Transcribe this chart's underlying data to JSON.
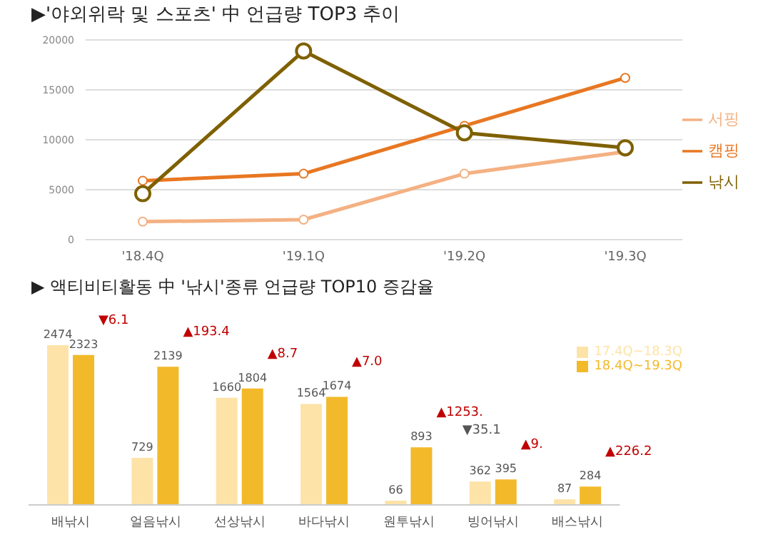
{
  "chart_data": [
    {
      "type": "line",
      "title": "▶'야외위락 및 스포츠' 中 언급량 TOP3 추이",
      "categories": [
        "'18.4Q",
        "'19.1Q",
        "'19.2Q",
        "'19.3Q"
      ],
      "series": [
        {
          "name": "낚시",
          "color": "#7f6000",
          "values": [
            4600,
            18900,
            10700,
            9200
          ]
        },
        {
          "name": "캠핑",
          "color": "#e87722",
          "values": [
            5900,
            6600,
            11400,
            16200
          ]
        },
        {
          "name": "서핑",
          "color": "#f4b183",
          "values": [
            1800,
            2000,
            6600,
            8800
          ]
        }
      ],
      "ylim": [
        0,
        20000
      ],
      "yticks": [
        0,
        5000,
        10000,
        15000,
        20000
      ],
      "grid": "y",
      "legend": "right",
      "marker": "circle"
    },
    {
      "type": "bar",
      "title": "▶ 액티비티활동 中 '낚시'종류 언급량 TOP10 증감율",
      "categories": [
        "배낚시",
        "얼음낚시",
        "선상낚시",
        "바다낚시",
        "원투낚시",
        "빙어낚시",
        "배스낚시"
      ],
      "series": [
        {
          "name": "17.4Q~18.3Q",
          "color": "#fde3a7",
          "values": [
            2474,
            729,
            1660,
            1564,
            66,
            362,
            87
          ]
        },
        {
          "name": "18.4Q~19.3Q",
          "color": "#f2b92a",
          "values": [
            2323,
            2139,
            1804,
            1674,
            893,
            395,
            284
          ]
        }
      ],
      "data_labels": true,
      "tick_labels": "x",
      "legend": "top right",
      "annotations": [
        "▼6.1",
        "▲193.4",
        "▲8.7",
        "▲7.0",
        "▲1253.",
        "▼35.1",
        "▲9.",
        "▲226.2"
      ]
    }
  ]
}
